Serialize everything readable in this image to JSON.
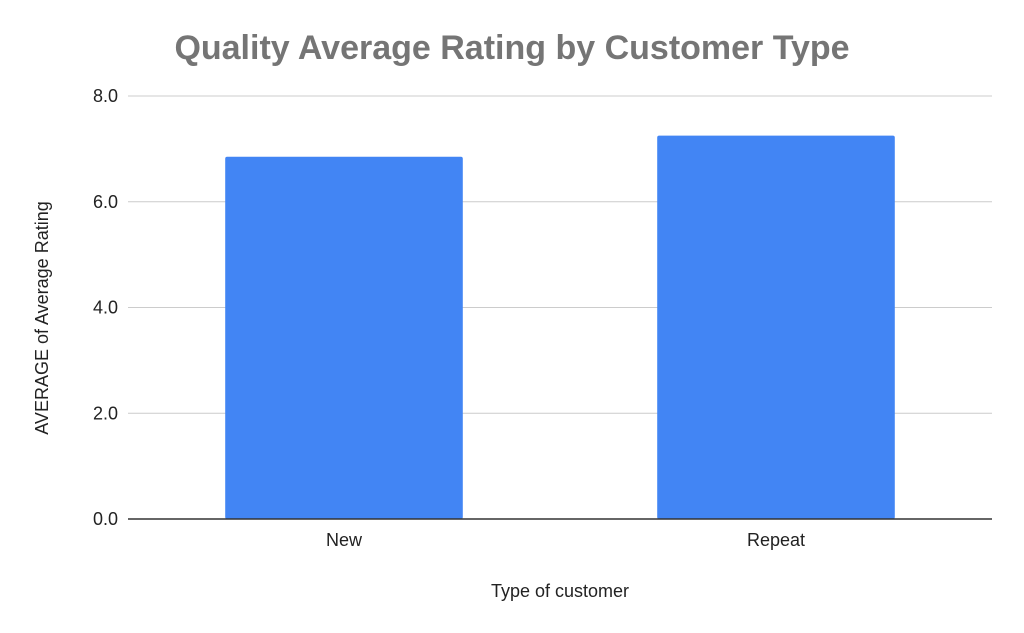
{
  "chart_data": {
    "type": "bar",
    "title": "Quality Average Rating by Customer Type",
    "xlabel": "Type of customer",
    "ylabel": "AVERAGE of Average Rating",
    "categories": [
      "New",
      "Repeat"
    ],
    "series": [
      {
        "values": [
          6.85,
          7.25
        ],
        "color": "#4285f4"
      }
    ],
    "ylim": [
      0,
      8
    ],
    "yticks": [
      "0.0",
      "2.0",
      "4.0",
      "6.0",
      "8.0"
    ],
    "grid": true,
    "legend": "none"
  }
}
